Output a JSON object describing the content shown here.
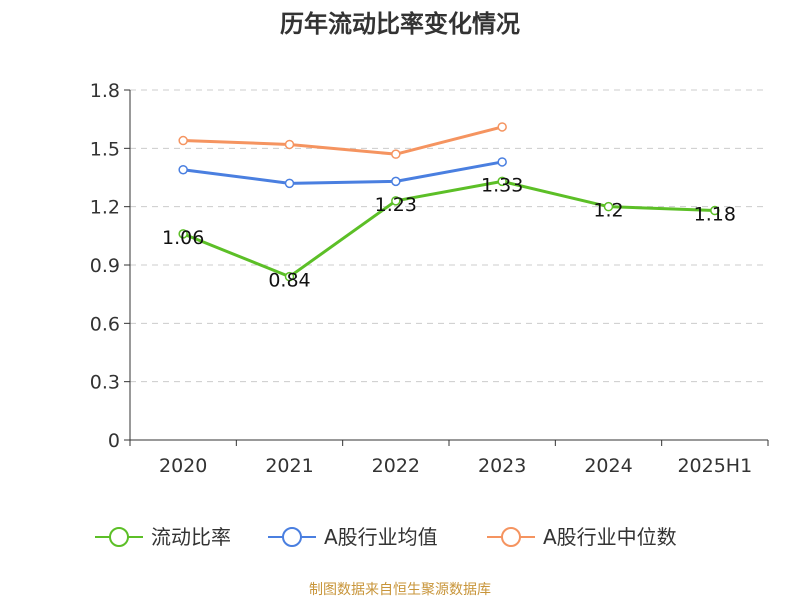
{
  "chart_data": {
    "type": "line",
    "title": "历年流动比率变化情况",
    "xlabel": "",
    "ylabel": "",
    "categories": [
      "2020",
      "2021",
      "2022",
      "2023",
      "2024",
      "2025H1"
    ],
    "ylim": [
      0,
      1.8
    ],
    "yticks": [
      "0",
      "0.3",
      "0.6",
      "0.9",
      "1.2",
      "1.5",
      "1.8"
    ],
    "grid": true,
    "legend_position": "bottom",
    "series": [
      {
        "name": "流动比率",
        "color": "#5cbf27",
        "values": [
          1.06,
          0.84,
          1.23,
          1.33,
          1.2,
          1.18
        ],
        "show_labels": true,
        "labels": [
          "1.06",
          "0.84",
          "1.23",
          "1.33",
          "1.2",
          "1.18"
        ]
      },
      {
        "name": "A股行业均值",
        "color": "#4a7fe0",
        "values": [
          1.39,
          1.32,
          1.33,
          1.43,
          null,
          null
        ],
        "show_labels": false
      },
      {
        "name": "A股行业中位数",
        "color": "#f59460",
        "values": [
          1.54,
          1.52,
          1.47,
          1.61,
          null,
          null
        ],
        "show_labels": false
      }
    ],
    "source": "制图数据来自恒生聚源数据库"
  }
}
